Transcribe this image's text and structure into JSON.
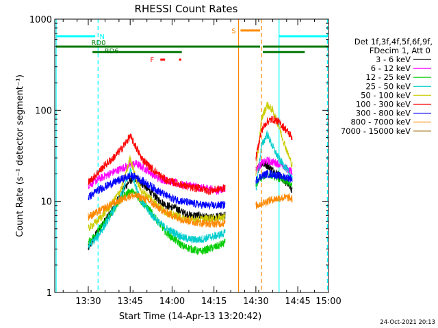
{
  "chart_data": {
    "type": "line",
    "title": "RHESSI Count Rates",
    "xlabel": "Start Time (14-Apr-13 13:20:42)",
    "ylabel": "Count Rate (s⁻¹ detector segment⁻¹)",
    "yscale": "log",
    "ylim": [
      1,
      1000
    ],
    "xlim_minutes": [
      -3,
      95
    ],
    "x_ticks": [
      {
        "label": "13:30",
        "minute": 9
      },
      {
        "label": "13:45",
        "minute": 24
      },
      {
        "label": "14:00",
        "minute": 39
      },
      {
        "label": "14:15",
        "minute": 54
      },
      {
        "label": "14:30",
        "minute": 69
      },
      {
        "label": "14:45",
        "minute": 84
      },
      {
        "label": "15:00",
        "minute": 99
      }
    ],
    "y_ticks": [
      "1",
      "10",
      "100",
      "1000"
    ],
    "legend_header": [
      "Det 1f,3f,4f,5f,6f,9f,",
      "FDecim 1, Att 0"
    ],
    "legend_position": "right",
    "series": [
      {
        "name": "3 - 6 keV",
        "color": "#000000",
        "points": [
          [
            9,
            3
          ],
          [
            12,
            4.5
          ],
          [
            17,
            7.5
          ],
          [
            20,
            11
          ],
          [
            22,
            14
          ],
          [
            24,
            17
          ],
          [
            26,
            18
          ],
          [
            28,
            16
          ],
          [
            31,
            13
          ],
          [
            34,
            10.5
          ],
          [
            37,
            9
          ],
          [
            40,
            8.5
          ],
          [
            43,
            7.5
          ],
          [
            46,
            7
          ],
          [
            49,
            7
          ],
          [
            52,
            6.5
          ],
          [
            55,
            6.8
          ],
          [
            58,
            7
          ]
        ],
        "points2": [
          [
            69,
            21
          ],
          [
            71,
            26
          ],
          [
            73,
            25
          ],
          [
            75,
            22
          ],
          [
            77,
            20
          ],
          [
            79,
            17
          ],
          [
            81,
            15
          ],
          [
            82,
            13
          ]
        ]
      },
      {
        "name": "6 - 12 keV",
        "color": "#ff00ff",
        "points": [
          [
            9,
            15
          ],
          [
            12,
            17
          ],
          [
            15,
            19
          ],
          [
            18,
            21
          ],
          [
            21,
            23
          ],
          [
            24,
            25
          ],
          [
            26,
            26
          ],
          [
            28,
            24
          ],
          [
            31,
            21
          ],
          [
            34,
            18
          ],
          [
            37,
            17
          ],
          [
            40,
            16
          ],
          [
            43,
            15
          ],
          [
            46,
            15
          ],
          [
            49,
            14
          ],
          [
            52,
            14
          ],
          [
            55,
            13
          ],
          [
            58,
            14
          ]
        ],
        "points2": [
          [
            69,
            22
          ],
          [
            71,
            26
          ],
          [
            73,
            28
          ],
          [
            75,
            27
          ],
          [
            77,
            26
          ],
          [
            79,
            24
          ],
          [
            81,
            22
          ],
          [
            82,
            21
          ]
        ]
      },
      {
        "name": "12 - 25 keV",
        "color": "#00cc00",
        "points": [
          [
            9,
            3.5
          ],
          [
            12,
            4.5
          ],
          [
            15,
            6
          ],
          [
            18,
            8
          ],
          [
            21,
            11
          ],
          [
            24,
            13
          ],
          [
            26,
            12
          ],
          [
            28,
            10
          ],
          [
            31,
            8
          ],
          [
            34,
            6
          ],
          [
            37,
            4.5
          ],
          [
            40,
            3.8
          ],
          [
            43,
            3.2
          ],
          [
            46,
            3
          ],
          [
            49,
            2.8
          ],
          [
            52,
            3
          ],
          [
            55,
            3.2
          ],
          [
            58,
            3.5
          ]
        ],
        "points2": [
          [
            69,
            15
          ],
          [
            71,
            18
          ],
          [
            73,
            20
          ],
          [
            75,
            19
          ],
          [
            77,
            18
          ],
          [
            79,
            17
          ],
          [
            81,
            16
          ],
          [
            82,
            15
          ]
        ]
      },
      {
        "name": "25 - 50 keV",
        "color": "#00cccc",
        "points": [
          [
            9,
            3.2
          ],
          [
            12,
            4
          ],
          [
            15,
            5.5
          ],
          [
            18,
            8
          ],
          [
            21,
            12
          ],
          [
            24,
            22
          ],
          [
            26,
            15
          ],
          [
            28,
            10
          ],
          [
            31,
            7.5
          ],
          [
            34,
            6
          ],
          [
            37,
            5
          ],
          [
            40,
            4.5
          ],
          [
            43,
            4
          ],
          [
            46,
            3.8
          ],
          [
            49,
            3.8
          ],
          [
            52,
            4
          ],
          [
            55,
            4.2
          ],
          [
            58,
            4.5
          ]
        ],
        "points2": [
          [
            69,
            13
          ],
          [
            71,
            40
          ],
          [
            73,
            55
          ],
          [
            75,
            40
          ],
          [
            77,
            30
          ],
          [
            79,
            25
          ],
          [
            81,
            20
          ],
          [
            82,
            18
          ]
        ]
      },
      {
        "name": "50 - 100 keV",
        "color": "#cccc00",
        "points": [
          [
            9,
            5
          ],
          [
            12,
            6
          ],
          [
            15,
            7.5
          ],
          [
            18,
            10
          ],
          [
            21,
            14
          ],
          [
            24,
            30
          ],
          [
            26,
            18
          ],
          [
            28,
            13
          ],
          [
            31,
            11
          ],
          [
            34,
            9
          ],
          [
            37,
            7.5
          ],
          [
            40,
            7
          ],
          [
            43,
            6.5
          ],
          [
            46,
            6.3
          ],
          [
            49,
            6.3
          ],
          [
            52,
            6.5
          ],
          [
            55,
            6.5
          ],
          [
            58,
            6.8
          ]
        ],
        "points2": [
          [
            69,
            20
          ],
          [
            71,
            80
          ],
          [
            73,
            115
          ],
          [
            75,
            100
          ],
          [
            77,
            70
          ],
          [
            79,
            45
          ],
          [
            81,
            30
          ],
          [
            82,
            25
          ]
        ]
      },
      {
        "name": "100 - 300 keV",
        "color": "#ff0000",
        "points": [
          [
            9,
            16
          ],
          [
            12,
            20
          ],
          [
            15,
            25
          ],
          [
            18,
            30
          ],
          [
            21,
            38
          ],
          [
            24,
            52
          ],
          [
            26,
            40
          ],
          [
            28,
            30
          ],
          [
            31,
            24
          ],
          [
            34,
            20
          ],
          [
            37,
            17
          ],
          [
            40,
            16
          ],
          [
            43,
            15
          ],
          [
            46,
            14
          ],
          [
            49,
            14
          ],
          [
            52,
            13
          ],
          [
            55,
            13.5
          ],
          [
            58,
            14
          ]
        ],
        "points2": [
          [
            69,
            30
          ],
          [
            71,
            60
          ],
          [
            73,
            75
          ],
          [
            75,
            80
          ],
          [
            77,
            75
          ],
          [
            79,
            65
          ],
          [
            81,
            55
          ],
          [
            82,
            50
          ]
        ]
      },
      {
        "name": "300 - 800 keV",
        "color": "#0000ff",
        "points": [
          [
            9,
            11
          ],
          [
            12,
            13
          ],
          [
            15,
            14.5
          ],
          [
            18,
            16
          ],
          [
            21,
            17.5
          ],
          [
            24,
            19
          ],
          [
            26,
            18.5
          ],
          [
            28,
            17
          ],
          [
            31,
            15
          ],
          [
            34,
            13
          ],
          [
            37,
            11.5
          ],
          [
            40,
            10.5
          ],
          [
            43,
            10
          ],
          [
            46,
            9.5
          ],
          [
            49,
            9.2
          ],
          [
            52,
            9
          ],
          [
            55,
            9
          ],
          [
            58,
            9.2
          ]
        ],
        "points2": [
          [
            69,
            17
          ],
          [
            71,
            19
          ],
          [
            73,
            20
          ],
          [
            75,
            20
          ],
          [
            77,
            19
          ],
          [
            79,
            18.5
          ],
          [
            81,
            18
          ],
          [
            82,
            17.5
          ]
        ]
      },
      {
        "name": "800 - 7000 keV",
        "color": "#ff8800",
        "points": [
          [
            9,
            6.8
          ],
          [
            12,
            7.5
          ],
          [
            15,
            8.5
          ],
          [
            18,
            9.5
          ],
          [
            21,
            10.5
          ],
          [
            24,
            11.5
          ],
          [
            26,
            11.5
          ],
          [
            28,
            11
          ],
          [
            31,
            10
          ],
          [
            34,
            8.5
          ],
          [
            37,
            7.5
          ],
          [
            40,
            6.8
          ],
          [
            43,
            6.3
          ],
          [
            46,
            6
          ],
          [
            49,
            5.8
          ],
          [
            52,
            5.7
          ],
          [
            55,
            5.7
          ],
          [
            58,
            5.8
          ]
        ],
        "points2": [
          [
            69,
            9
          ],
          [
            71,
            9.5
          ],
          [
            73,
            10
          ],
          [
            75,
            10.5
          ],
          [
            77,
            10.8
          ],
          [
            79,
            11
          ],
          [
            81,
            11
          ],
          [
            82,
            10.5
          ]
        ]
      },
      {
        "name": "7000 - 15000 keV",
        "color": "#996600",
        "points": [],
        "points2": []
      }
    ],
    "annotations": {
      "vertical_lines": [
        {
          "minute": -2.5,
          "color": "#00ffff",
          "style": "solid"
        },
        {
          "minute": 12.5,
          "color": "#00ffff",
          "style": "dashed"
        },
        {
          "minute": 62.8,
          "color": "#ff8800",
          "style": "solid"
        },
        {
          "minute": 71,
          "color": "#ff8800",
          "style": "dashed"
        },
        {
          "minute": 77.3,
          "color": "#00ffff",
          "style": "solid"
        },
        {
          "minute": 94.6,
          "color": "#00ffff",
          "style": "dashed"
        }
      ],
      "segments": [
        {
          "label": "N",
          "color": "#00ffff",
          "row": 650,
          "ranges": [
            [
              -2.5,
              11.5
            ],
            [
              77.3,
              94.6
            ]
          ],
          "thick": 3
        },
        {
          "label": "F",
          "color": "#ff0000",
          "row": 360,
          "ranges": [
            [
              34.8,
              36.5
            ],
            [
              41.5,
              42.3
            ]
          ],
          "thick": 3
        },
        {
          "label": "S",
          "color": "#ff8800",
          "row": 750,
          "ranges": [
            [
              63.5,
              70.5
            ]
          ],
          "thick": 3
        },
        {
          "label": "RD0",
          "color": "#007700",
          "row": 500,
          "ranges": [
            [
              -2.5,
              70.5
            ],
            [
              71.5,
              95
            ]
          ],
          "thick": 3
        },
        {
          "label": "RD6",
          "color": "#007700",
          "row": 435,
          "ranges": [
            [
              10.5,
              42.5
            ],
            [
              71.5,
              86.5
            ]
          ],
          "thick": 3
        }
      ]
    },
    "footer_date": "24-Oct-2021 20:13"
  }
}
